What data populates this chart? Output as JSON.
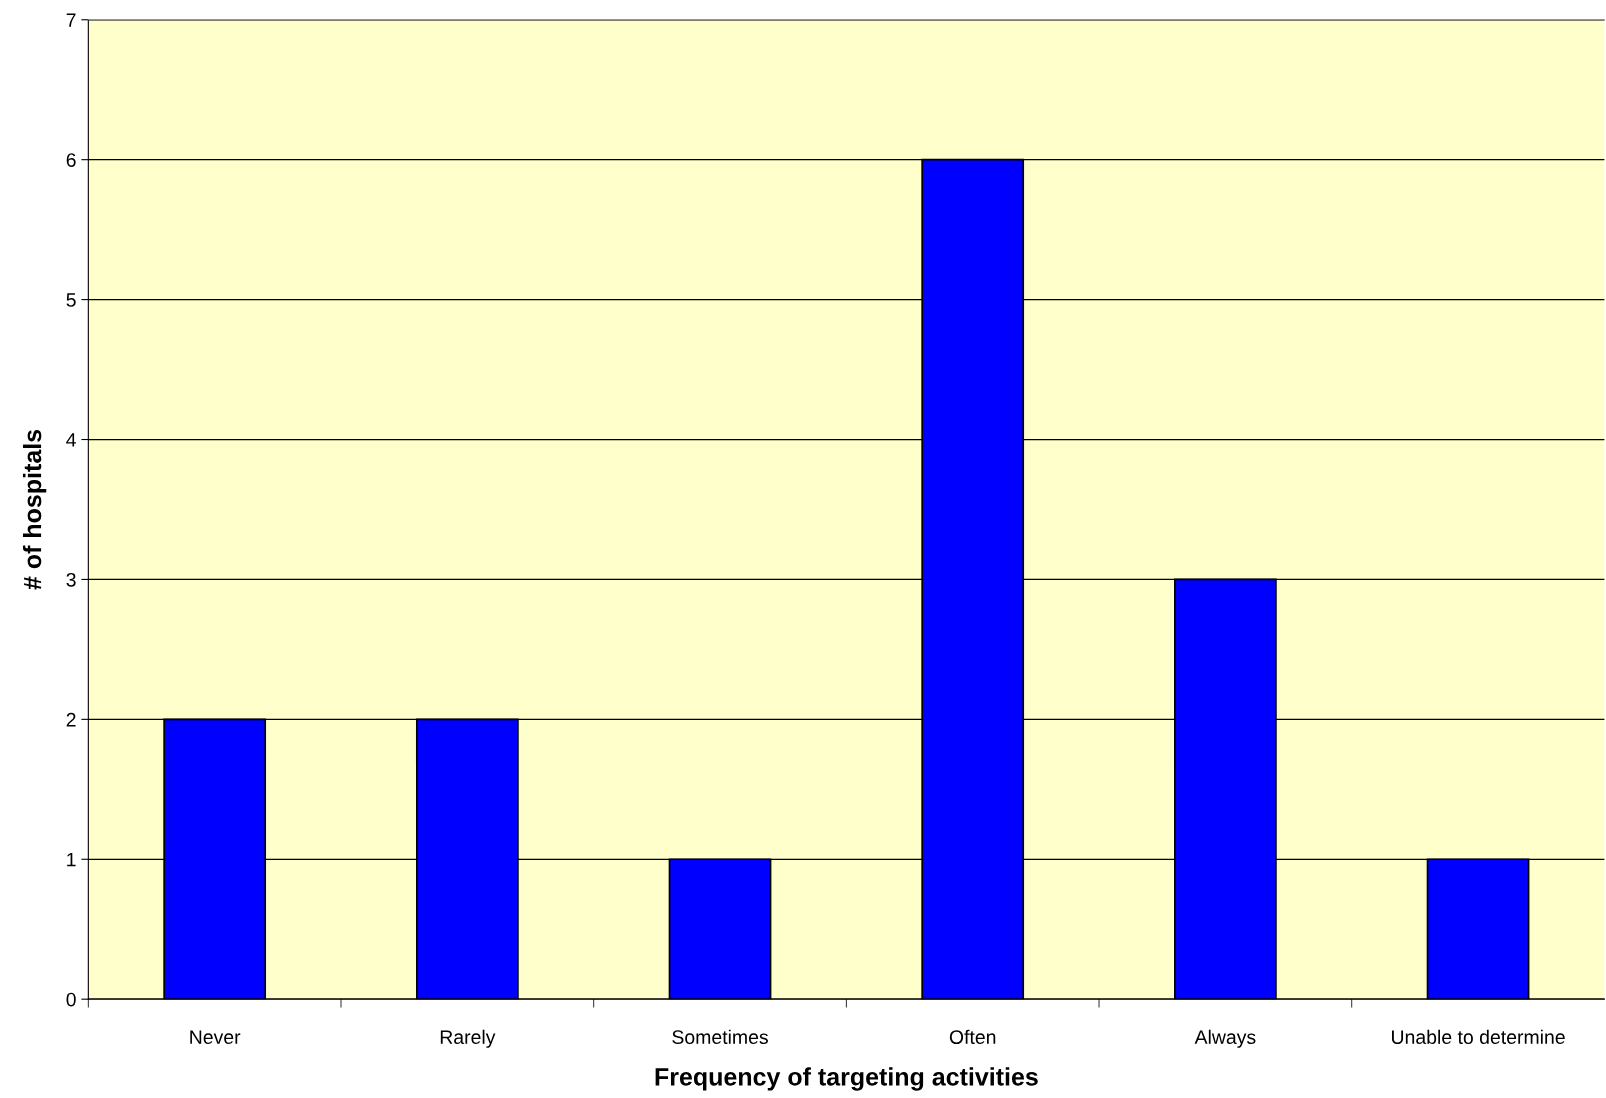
{
  "chart_data": {
    "type": "bar",
    "xlabel": "Frequency of targeting activities",
    "ylabel": "# of hospitals",
    "categories": [
      "Never",
      "Rarely",
      "Sometimes",
      "Often",
      "Always",
      "Unable to determine"
    ],
    "values": [
      2,
      2,
      1,
      6,
      3,
      1
    ],
    "color": "#0000ff",
    "ylim": [
      0,
      7
    ],
    "yticks": [
      0,
      1,
      2,
      3,
      4,
      5,
      6,
      7
    ],
    "grid": "y",
    "legend": false
  }
}
